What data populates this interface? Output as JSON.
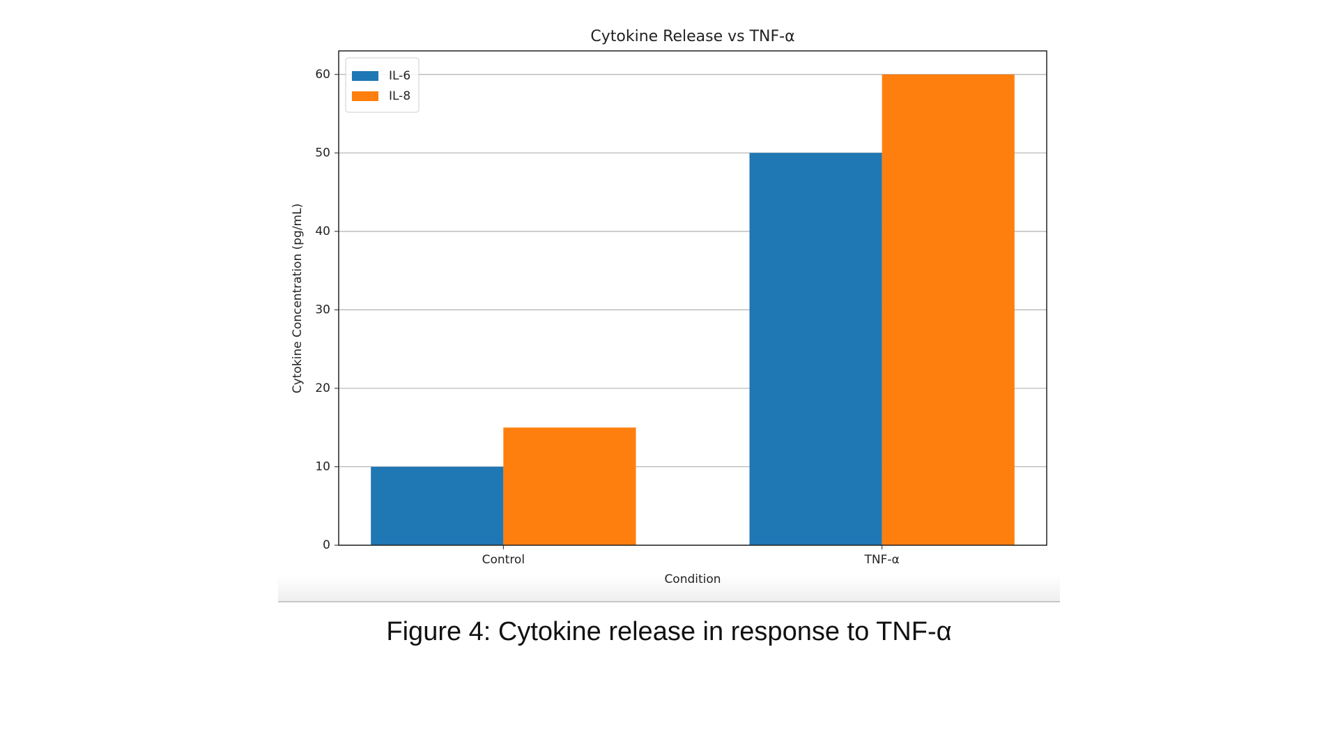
{
  "chart_data": {
    "type": "bar",
    "title": "Cytokine Release vs TNF-α",
    "x_label": "Condition",
    "y_label": "Cytokine Concentration (pg/mL)",
    "categories": [
      "Control",
      "TNF-α"
    ],
    "series": [
      {
        "name": "IL-6",
        "color": "#1f77b4",
        "values": [
          10,
          50
        ]
      },
      {
        "name": "IL-8",
        "color": "#ff7f0e",
        "values": [
          15,
          60
        ]
      }
    ],
    "ylim": [
      0,
      63
    ],
    "yticks": [
      0,
      10,
      20,
      30,
      40,
      50,
      60
    ],
    "grid": true,
    "legend": "upper left"
  },
  "caption": "Figure 4: Cytokine release in response to TNF-α"
}
